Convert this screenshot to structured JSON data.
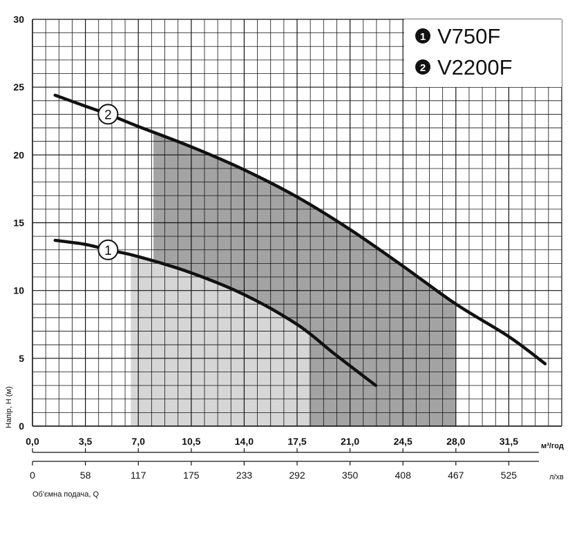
{
  "chart_data": {
    "type": "line",
    "ylabel": "Напір, Н (м)",
    "xlabel": "Об'ємна подача, Q",
    "xunit_primary": "м³/год",
    "xunit_secondary": "л/хв",
    "xlim": [
      0,
      35
    ],
    "ylim": [
      0,
      30
    ],
    "xticks_primary": [
      "0,0",
      "3,5",
      "7,0",
      "10,5",
      "14,0",
      "17,5",
      "21,0",
      "24,5",
      "28,0",
      "31,5"
    ],
    "xticks_primary_values": [
      0,
      3.5,
      7,
      10.5,
      14,
      17.5,
      21,
      24.5,
      28,
      31.5
    ],
    "xticks_secondary": [
      "0",
      "58",
      "117",
      "175",
      "233",
      "292",
      "350",
      "408",
      "467",
      "525"
    ],
    "yticks": [
      "0",
      "5",
      "10",
      "15",
      "20",
      "25",
      "30"
    ],
    "yticks_values": [
      0,
      5,
      10,
      15,
      20,
      25,
      30
    ],
    "grid": true,
    "legend": {
      "position": "top-right",
      "items": [
        {
          "marker": "1",
          "label": "V750F"
        },
        {
          "marker": "2",
          "label": "V2200F"
        }
      ]
    },
    "series": [
      {
        "name": "V750F",
        "marker": "1",
        "x": [
          1.5,
          3.5,
          5.0,
          7.0,
          10.5,
          14.0,
          17.5,
          20.0,
          22.7
        ],
        "y": [
          13.7,
          13.4,
          13.0,
          12.5,
          11.3,
          9.7,
          7.5,
          5.3,
          3.0
        ]
      },
      {
        "name": "V2200F",
        "marker": "2",
        "x": [
          1.5,
          3.5,
          5.0,
          7.0,
          10.5,
          14.0,
          17.5,
          21.0,
          24.5,
          28.0,
          31.5,
          33.9
        ],
        "y": [
          24.4,
          23.6,
          23.0,
          22.1,
          20.6,
          18.9,
          16.9,
          14.5,
          11.8,
          9.0,
          6.6,
          4.6
        ]
      }
    ],
    "regions": [
      {
        "series": "V750F",
        "x_from": 6.5,
        "x_to": 18.3,
        "color": "#d6d6d6"
      },
      {
        "series": "V2200F",
        "x_from": 8.0,
        "x_to": 28.0,
        "color": "#a3a3a3"
      }
    ]
  }
}
